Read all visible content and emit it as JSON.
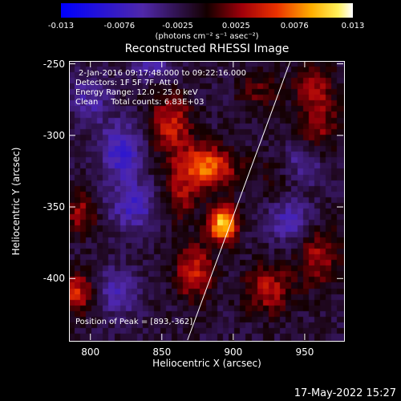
{
  "colorbar": {
    "ticks": [
      "-0.013",
      "-0.0076",
      "-0.0025",
      "0.0025",
      "0.0076",
      "0.013"
    ],
    "unit": "(photons cm⁻² s⁻¹ asec⁻²)"
  },
  "info": {
    "line1": "2-Jan-2016 09:17:48.000 to 09:22:16.000",
    "line2": "Detectors: 1F 5F 7F, Att 0",
    "line3": "Energy Range: 12.0 - 25.0 keV",
    "line4": "Clean     Total counts: 6.83E+03",
    "peak": "Position of Peak = [893,-362]"
  },
  "timestamp": "17-May-2022 15:27",
  "chart_data": {
    "type": "heatmap",
    "title": "Reconstructed RHESSI Image",
    "xlabel": "Heliocentric X (arcsec)",
    "ylabel": "Heliocentric Y (arcsec)",
    "xlim": [
      785,
      977
    ],
    "ylim": [
      -443,
      -248
    ],
    "xticks": [
      "800",
      "850",
      "900",
      "950"
    ],
    "yticks": [
      "-250",
      "-300",
      "-350",
      "-400"
    ],
    "xtick_values": [
      800,
      850,
      900,
      950
    ],
    "ytick_values": [
      -250,
      -300,
      -350,
      -400
    ],
    "zlim": [
      -0.013,
      0.013
    ],
    "colormap": "blue-purple-red-yellow-white",
    "peak": [
      893,
      -362
    ],
    "sources": [
      {
        "x": 893,
        "y": -362,
        "amp": 0.013,
        "sx": 7,
        "sy": 9
      },
      {
        "x": 880,
        "y": -322,
        "amp": 0.0095,
        "sx": 15,
        "sy": 10
      },
      {
        "x": 857,
        "y": -292,
        "amp": 0.0065,
        "sx": 10,
        "sy": 14
      },
      {
        "x": 873,
        "y": -395,
        "amp": 0.0065,
        "sx": 9,
        "sy": 14
      },
      {
        "x": 863,
        "y": -345,
        "amp": 0.0045,
        "sx": 8,
        "sy": 10
      },
      {
        "x": 793,
        "y": -355,
        "amp": 0.005,
        "sx": 8,
        "sy": 10
      },
      {
        "x": 790,
        "y": -410,
        "amp": 0.007,
        "sx": 8,
        "sy": 10
      },
      {
        "x": 925,
        "y": -408,
        "amp": 0.0055,
        "sx": 12,
        "sy": 12
      },
      {
        "x": 960,
        "y": -385,
        "amp": 0.005,
        "sx": 10,
        "sy": 14
      },
      {
        "x": 960,
        "y": -290,
        "amp": 0.0045,
        "sx": 10,
        "sy": 18
      },
      {
        "x": 918,
        "y": -270,
        "amp": 0.003,
        "sx": 10,
        "sy": 10
      },
      {
        "x": 930,
        "y": -330,
        "amp": 0.0015,
        "sx": 12,
        "sy": 12
      },
      {
        "x": 955,
        "y": -265,
        "amp": 0.0035,
        "sx": 10,
        "sy": 10
      },
      {
        "x": 822,
        "y": -312,
        "amp": -0.006,
        "sx": 10,
        "sy": 14
      },
      {
        "x": 830,
        "y": -350,
        "amp": -0.005,
        "sx": 12,
        "sy": 12
      },
      {
        "x": 940,
        "y": -360,
        "amp": -0.005,
        "sx": 10,
        "sy": 10
      },
      {
        "x": 950,
        "y": -320,
        "amp": -0.004,
        "sx": 10,
        "sy": 10
      },
      {
        "x": 800,
        "y": -275,
        "amp": -0.004,
        "sx": 10,
        "sy": 12
      },
      {
        "x": 820,
        "y": -410,
        "amp": -0.004,
        "sx": 10,
        "sy": 12
      },
      {
        "x": 843,
        "y": -250,
        "amp": -0.004,
        "sx": 10,
        "sy": 8
      }
    ],
    "limb": [
      [
        940,
        -248
      ],
      [
        868,
        -443
      ]
    ]
  }
}
